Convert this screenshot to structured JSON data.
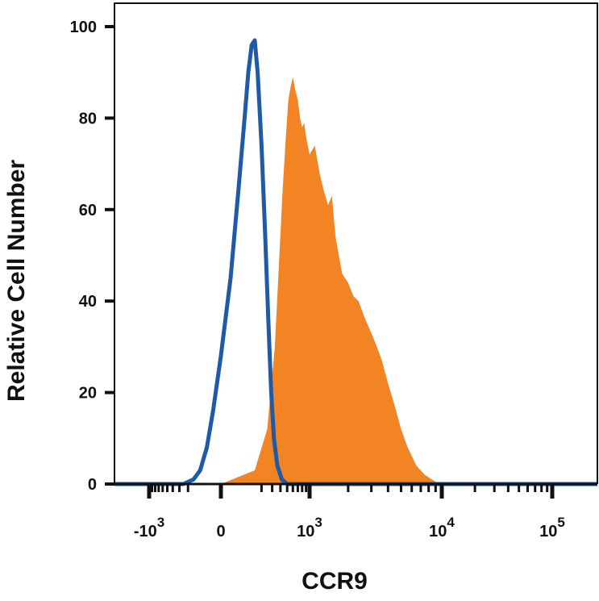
{
  "chart_data": {
    "type": "area",
    "xlabel": "CCR9",
    "ylabel": "Relative Cell Number",
    "x_scale": "biexponential",
    "xlim": [
      -2000,
      200000
    ],
    "ylim": [
      0,
      100
    ],
    "y_ticks": [
      "0",
      "20",
      "40",
      "60",
      "80",
      "100"
    ],
    "x_ticks": [
      {
        "value": -1000,
        "base": "-10",
        "exp": "3"
      },
      {
        "value": 0,
        "base": "0",
        "exp": ""
      },
      {
        "value": 1000,
        "base": "10",
        "exp": "3"
      },
      {
        "value": 10000,
        "base": "10",
        "exp": "4"
      },
      {
        "value": 100000,
        "base": "10",
        "exp": "5"
      }
    ],
    "grid": false,
    "legend": "none",
    "series": [
      {
        "style": "filled",
        "color": "#f28424",
        "points": [
          [
            -300,
            0
          ],
          [
            0,
            0
          ],
          [
            150,
            3
          ],
          [
            250,
            12
          ],
          [
            330,
            30
          ],
          [
            380,
            48
          ],
          [
            430,
            64
          ],
          [
            480,
            76
          ],
          [
            520,
            84
          ],
          [
            560,
            87
          ],
          [
            600,
            89
          ],
          [
            650,
            86
          ],
          [
            700,
            84
          ],
          [
            750,
            80
          ],
          [
            800,
            78
          ],
          [
            850,
            79
          ],
          [
            900,
            76
          ],
          [
            1000,
            72
          ],
          [
            1100,
            74
          ],
          [
            1200,
            68
          ],
          [
            1300,
            64
          ],
          [
            1400,
            61
          ],
          [
            1500,
            63
          ],
          [
            1600,
            54
          ],
          [
            1800,
            46
          ],
          [
            2000,
            44
          ],
          [
            2200,
            41
          ],
          [
            2400,
            40
          ],
          [
            2700,
            36
          ],
          [
            3000,
            33
          ],
          [
            3300,
            30
          ],
          [
            3600,
            27
          ],
          [
            4000,
            22
          ],
          [
            4500,
            17
          ],
          [
            5000,
            12
          ],
          [
            5600,
            8
          ],
          [
            6500,
            4
          ],
          [
            7500,
            2
          ],
          [
            9000,
            0.5
          ],
          [
            10000,
            0
          ],
          [
            200000,
            0
          ]
        ]
      },
      {
        "style": "outline",
        "color": "#1f5aa6",
        "points": [
          [
            -2000,
            0
          ],
          [
            -250,
            0
          ],
          [
            -150,
            1
          ],
          [
            -100,
            3
          ],
          [
            -60,
            8
          ],
          [
            -30,
            16
          ],
          [
            0,
            28
          ],
          [
            30,
            45
          ],
          [
            60,
            64
          ],
          [
            90,
            80
          ],
          [
            110,
            90
          ],
          [
            130,
            96
          ],
          [
            150,
            97
          ],
          [
            170,
            90
          ],
          [
            200,
            74
          ],
          [
            230,
            55
          ],
          [
            260,
            36
          ],
          [
            290,
            20
          ],
          [
            320,
            10
          ],
          [
            360,
            4
          ],
          [
            420,
            1
          ],
          [
            500,
            0
          ],
          [
            200000,
            0
          ]
        ]
      }
    ]
  }
}
